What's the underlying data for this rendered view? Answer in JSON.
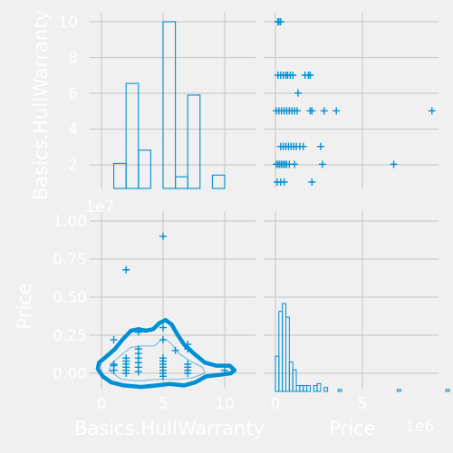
{
  "figure": {
    "background": "#f0f0f0",
    "grid_color": "#cbcbcb",
    "accent": "#008fd5",
    "label_color": "#ffffff"
  },
  "chart_data": {
    "type": "pairplot",
    "variables": [
      "Basics.HullWarranty",
      "Price"
    ],
    "xlabels": [
      "Basics.HullWarranty",
      "Price"
    ],
    "ylabels": [
      "Basics.HullWarranty",
      "Price"
    ],
    "price_axis_offset": "1e7",
    "price_x_offset": "1e6",
    "warranty_ticks": [
      "0",
      "5",
      "10"
    ],
    "warranty_y_ticks": [
      "2",
      "4",
      "6",
      "8",
      "10"
    ],
    "price_y_ticks": [
      "0.00",
      "0.25",
      "0.50",
      "0.75",
      "1.00"
    ],
    "price_x_ticks": [
      "0",
      "5"
    ],
    "warranty_hist": {
      "bins": [
        [
          1,
          2,
          1.5
        ],
        [
          2,
          3,
          6.3
        ],
        [
          3,
          4,
          2.3
        ],
        [
          5,
          6,
          10
        ],
        [
          6,
          7,
          0.7
        ],
        [
          7,
          8,
          5.6
        ],
        [
          9,
          10,
          0.8
        ]
      ]
    },
    "price_hist": {
      "bins": [
        [
          0,
          0.2,
          1.8
        ],
        [
          0.2,
          0.4,
          4.1
        ],
        [
          0.4,
          0.6,
          4.5
        ],
        [
          0.6,
          0.8,
          3.8
        ],
        [
          0.8,
          1.0,
          1.5
        ],
        [
          1.0,
          1.2,
          1.1
        ],
        [
          1.2,
          1.4,
          0.3
        ],
        [
          1.4,
          1.6,
          0.3
        ],
        [
          1.6,
          1.8,
          0.3
        ],
        [
          1.8,
          2.0,
          0.3
        ],
        [
          2.2,
          2.4,
          0.3
        ],
        [
          2.4,
          2.6,
          0.4
        ],
        [
          2.8,
          3.0,
          0.2
        ],
        [
          3.6,
          3.8,
          0.1
        ],
        [
          7.0,
          7.2,
          0.1
        ],
        [
          9.8,
          10.0,
          0.1
        ]
      ]
    },
    "scatter_warranty_vs_price": [
      [
        0.15,
        10
      ],
      [
        0.2,
        10
      ],
      [
        0.3,
        10
      ],
      [
        0.15,
        7
      ],
      [
        0.3,
        7
      ],
      [
        0.45,
        7
      ],
      [
        0.6,
        7
      ],
      [
        0.7,
        7
      ],
      [
        0.85,
        7
      ],
      [
        1.0,
        7
      ],
      [
        1.7,
        7
      ],
      [
        1.9,
        7
      ],
      [
        2.0,
        7
      ],
      [
        1.3,
        6
      ],
      [
        0.05,
        5
      ],
      [
        0.2,
        5
      ],
      [
        0.35,
        5
      ],
      [
        0.5,
        5
      ],
      [
        0.65,
        5
      ],
      [
        0.8,
        5
      ],
      [
        0.95,
        5
      ],
      [
        1.1,
        5
      ],
      [
        1.25,
        5
      ],
      [
        2.0,
        5
      ],
      [
        2.1,
        5
      ],
      [
        2.8,
        5
      ],
      [
        3.5,
        5
      ],
      [
        9.0,
        5
      ],
      [
        0.3,
        3
      ],
      [
        0.45,
        3
      ],
      [
        0.6,
        3
      ],
      [
        0.75,
        3
      ],
      [
        0.9,
        3
      ],
      [
        1.05,
        3
      ],
      [
        1.2,
        3
      ],
      [
        1.4,
        3
      ],
      [
        1.6,
        3
      ],
      [
        2.6,
        3
      ],
      [
        0.05,
        2
      ],
      [
        0.15,
        2
      ],
      [
        0.25,
        2
      ],
      [
        0.35,
        2
      ],
      [
        0.45,
        2
      ],
      [
        0.55,
        2
      ],
      [
        0.65,
        2
      ],
      [
        0.8,
        2
      ],
      [
        1.1,
        2
      ],
      [
        2.7,
        2
      ],
      [
        6.8,
        2
      ],
      [
        0.1,
        1
      ],
      [
        0.3,
        1
      ],
      [
        0.5,
        1
      ],
      [
        2.1,
        1
      ]
    ],
    "scatter_price_vs_warranty": [
      [
        1,
        0.02
      ],
      [
        1,
        0.05
      ],
      [
        1,
        0.06
      ],
      [
        1,
        0.22
      ],
      [
        2,
        0.0
      ],
      [
        2,
        0.02
      ],
      [
        2,
        0.04
      ],
      [
        2,
        0.06
      ],
      [
        2,
        0.08
      ],
      [
        2,
        0.1
      ],
      [
        2,
        0.68
      ],
      [
        3,
        0.01
      ],
      [
        3,
        0.04
      ],
      [
        3,
        0.07
      ],
      [
        3,
        0.1
      ],
      [
        3,
        0.13
      ],
      [
        3,
        0.16
      ],
      [
        3,
        0.27
      ],
      [
        5,
        -0.02
      ],
      [
        5,
        0.0
      ],
      [
        5,
        0.02
      ],
      [
        5,
        0.04
      ],
      [
        5,
        0.06
      ],
      [
        5,
        0.08
      ],
      [
        5,
        0.1
      ],
      [
        5,
        0.22
      ],
      [
        5,
        0.3
      ],
      [
        5,
        0.9
      ],
      [
        6,
        0.15
      ],
      [
        7,
        0.0
      ],
      [
        7,
        0.02
      ],
      [
        7,
        0.04
      ],
      [
        7,
        0.06
      ],
      [
        7,
        0.16
      ],
      [
        7,
        0.19
      ],
      [
        10,
        0.02
      ]
    ],
    "kde_contour": [
      [
        -0.3,
        0.03
      ],
      [
        0.1,
        -0.02
      ],
      [
        0.8,
        -0.06
      ],
      [
        1.8,
        -0.08
      ],
      [
        3.2,
        -0.09
      ],
      [
        4.5,
        -0.08
      ],
      [
        5.5,
        -0.07
      ],
      [
        6.7,
        -0.08
      ],
      [
        7.6,
        -0.06
      ],
      [
        8.5,
        -0.02
      ],
      [
        9.6,
        -0.01
      ],
      [
        10.5,
        0.0
      ],
      [
        10.8,
        0.02
      ],
      [
        10.4,
        0.05
      ],
      [
        9.3,
        0.05
      ],
      [
        8.4,
        0.07
      ],
      [
        7.5,
        0.13
      ],
      [
        6.7,
        0.19
      ],
      [
        6.2,
        0.25
      ],
      [
        5.7,
        0.32
      ],
      [
        5.2,
        0.35
      ],
      [
        4.7,
        0.33
      ],
      [
        4.2,
        0.29
      ],
      [
        3.6,
        0.28
      ],
      [
        3.0,
        0.29
      ],
      [
        2.4,
        0.28
      ],
      [
        1.7,
        0.22
      ],
      [
        1.1,
        0.16
      ],
      [
        0.4,
        0.11
      ],
      [
        -0.2,
        0.07
      ]
    ],
    "kde_inner": [
      [
        0.6,
        0.02
      ],
      [
        1.6,
        -0.04
      ],
      [
        3.0,
        -0.05
      ],
      [
        4.6,
        -0.04
      ],
      [
        6.2,
        -0.04
      ],
      [
        7.4,
        -0.03
      ],
      [
        8.4,
        0.0
      ],
      [
        8.2,
        0.04
      ],
      [
        7.2,
        0.08
      ],
      [
        6.3,
        0.13
      ],
      [
        5.6,
        0.2
      ],
      [
        5.0,
        0.23
      ],
      [
        4.3,
        0.18
      ],
      [
        3.4,
        0.18
      ],
      [
        2.4,
        0.17
      ],
      [
        1.6,
        0.12
      ],
      [
        0.9,
        0.07
      ]
    ]
  }
}
